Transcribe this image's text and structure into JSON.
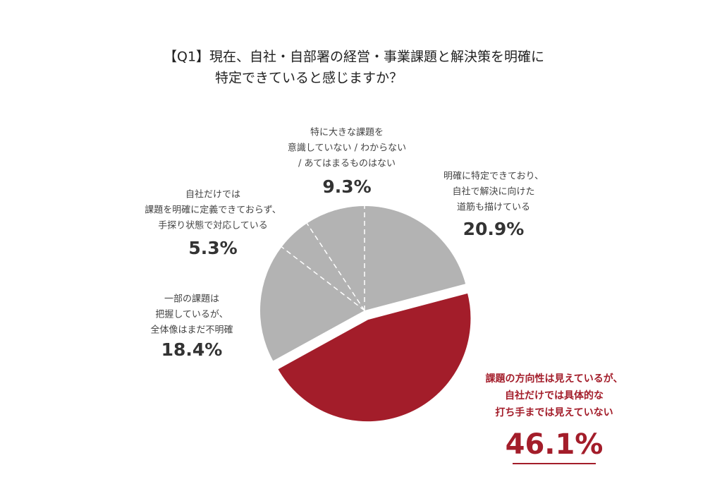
{
  "chart_data": {
    "type": "pie",
    "title": [
      "【Q1】現在、自社・自部署の経営・事業課題と解決策を明確に",
      "特定できていると感じますか？"
    ],
    "categories": [
      [
        "明確に特定できており、",
        "自社で解決に向けた",
        "道筋も描けている"
      ],
      [
        "課題の方向性は見えているが、",
        "自社だけでは具体的な",
        "打ち手までは見えていない"
      ],
      [
        "一部の課題は",
        "把握しているが、",
        "全体像はまだ不明確"
      ],
      [
        "自社だけでは",
        "課題を明確に定義できておらず、",
        "手探り状態で対応している"
      ],
      [
        "特に大きな課題を",
        "意識していない / わからない",
        "/ あてはまるものはない"
      ]
    ],
    "values": [
      20.9,
      46.1,
      18.4,
      5.3,
      9.3
    ],
    "value_labels": [
      "20.9%",
      "46.1%",
      "18.4%",
      "5.3%",
      "9.3%"
    ],
    "colors": [
      "#b3b3b3",
      "#a31d2a",
      "#b3b3b3",
      "#b3b3b3",
      "#b3b3b3"
    ],
    "highlight": 1
  }
}
